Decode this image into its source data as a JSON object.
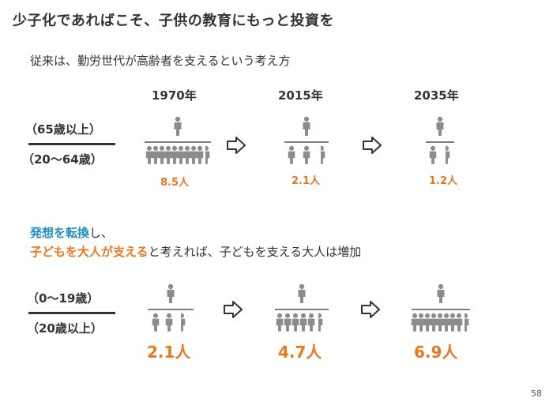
{
  "title": "少子化であればこそ、子供の教育にもっと投資を",
  "subtitle": "従来は、勤労世代が高齢者を支えるという考え方",
  "years": [
    "1970年",
    "2015年",
    "2035年"
  ],
  "top_ratio": {
    "numerator": "（65歳以上）",
    "denominator": "（20〜64歳）"
  },
  "top_values": [
    "8.5人",
    "2.1人",
    "1.2人"
  ],
  "message": {
    "line1_highlight": "発想を転換",
    "line1_rest": "し、",
    "line2_highlight": "子どもを大人が支える",
    "line2_rest": "と考えれば、子どもを支える大人は増加"
  },
  "bottom_ratio": {
    "numerator": "（0〜19歳）",
    "denominator": "（20歳以上）"
  },
  "bottom_values": [
    "2.1人",
    "4.7人",
    "6.9人"
  ],
  "page_number": "58",
  "colors": {
    "accent": "#E87722",
    "highlight": "#1E90C8",
    "figure": "#8C8C8C"
  }
}
